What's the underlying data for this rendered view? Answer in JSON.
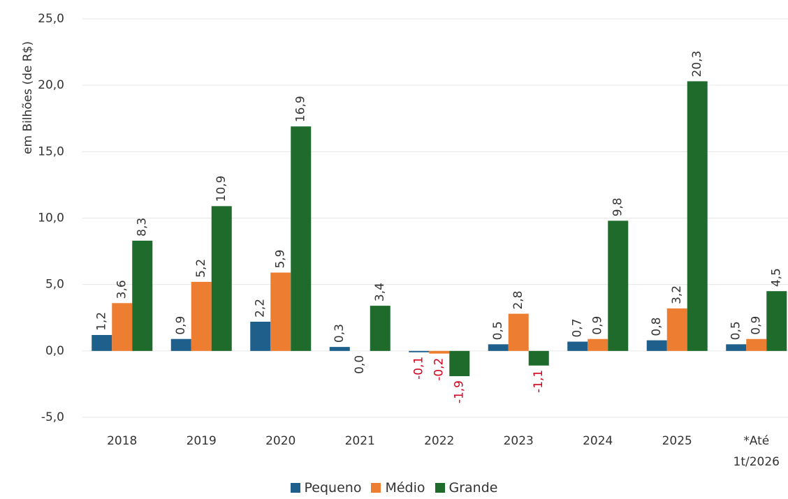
{
  "chart_data": {
    "type": "bar",
    "y_label": "em Bilhões (de R$)",
    "categories": [
      "2018",
      "2019",
      "2020",
      "2021",
      "2022",
      "2023",
      "2024",
      "2025",
      "*Até 1t/2026"
    ],
    "series": [
      {
        "name": "Pequeno",
        "color": "#1f5f8b",
        "values": [
          1.2,
          0.9,
          2.2,
          0.3,
          -0.1,
          0.5,
          0.7,
          0.8,
          0.5
        ],
        "value_labels": [
          "1,2",
          "0,9",
          "2,2",
          "0,3",
          "-0,1",
          "0,5",
          "0,7",
          "0,8",
          "0,5"
        ]
      },
      {
        "name": "Médio",
        "color": "#ed7d31",
        "values": [
          3.6,
          5.2,
          5.9,
          0.0,
          -0.2,
          2.8,
          0.9,
          3.2,
          0.9
        ],
        "value_labels": [
          "3,6",
          "5,2",
          "5,9",
          "0,0",
          "-0,2",
          "2,8",
          "0,9",
          "3,2",
          "0,9"
        ]
      },
      {
        "name": "Grande",
        "color": "#1e6b2b",
        "values": [
          8.3,
          10.9,
          16.9,
          3.4,
          -1.9,
          -1.1,
          9.8,
          20.3,
          4.5
        ],
        "value_labels": [
          "8,3",
          "10,9",
          "16,9",
          "3,4",
          "-1,9",
          "-1,1",
          "9,8",
          "20,3",
          "4,5"
        ]
      }
    ],
    "ylim": [
      -5,
      25
    ],
    "yticks": [
      {
        "value": -5,
        "label": "-5,0"
      },
      {
        "value": 0,
        "label": "0,0"
      },
      {
        "value": 5,
        "label": "5,0"
      },
      {
        "value": 10,
        "label": "10,0"
      },
      {
        "value": 15,
        "label": "15,0"
      },
      {
        "value": 20,
        "label": "20,0"
      },
      {
        "value": 25,
        "label": "25,0"
      }
    ],
    "grid": true,
    "legend": "bottom"
  }
}
